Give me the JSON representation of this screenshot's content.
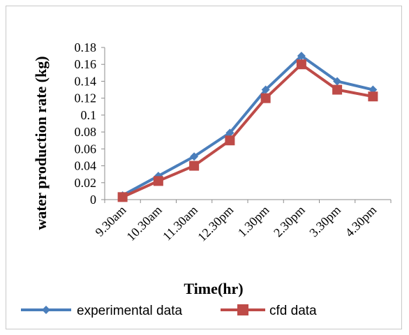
{
  "chart_data": {
    "type": "line",
    "categories": [
      "9.30am",
      "10.30am",
      "11.30am",
      "12.30pm",
      "1.30pm",
      "2.30pm",
      "3.30pm",
      "4.30pm"
    ],
    "series": [
      {
        "name": "experimental data",
        "values": [
          0.005,
          0.028,
          0.051,
          0.079,
          0.13,
          0.17,
          0.14,
          0.13
        ],
        "color": "#4a7ebb",
        "marker": "diamond"
      },
      {
        "name": "cfd data",
        "values": [
          0.003,
          0.022,
          0.04,
          0.07,
          0.12,
          0.16,
          0.13,
          0.122
        ],
        "color": "#be4b48",
        "marker": "square"
      }
    ],
    "xlabel": "Time(hr)",
    "ylabel": "water production rate (kg)",
    "ylim": [
      0,
      0.18
    ],
    "yticks": [
      "0",
      "0.02",
      "0.04",
      "0.06",
      "0.08",
      "0.1",
      "0.12",
      "0.14",
      "0.16",
      "0.18"
    ],
    "grid": false,
    "legend": "bottom"
  }
}
